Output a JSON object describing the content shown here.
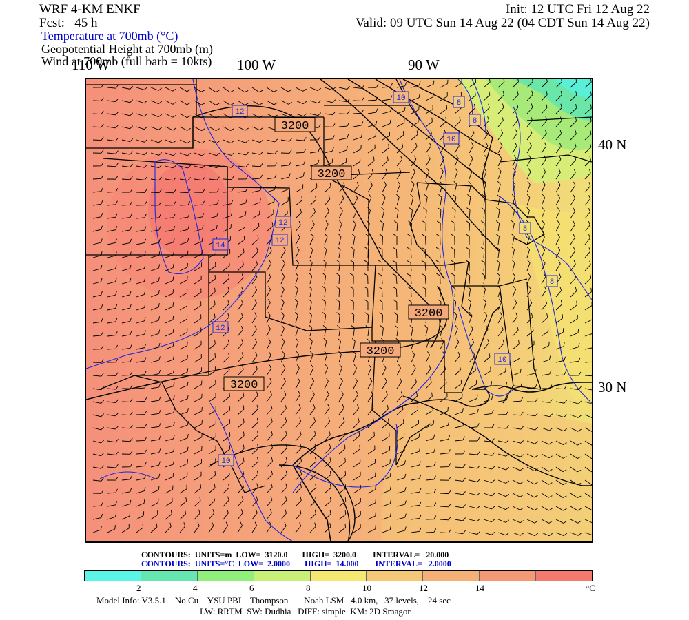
{
  "header": {
    "model": "WRF 4-KM ENKF",
    "init": "Init: 12 UTC Fri 12 Aug 22",
    "fcst": "Fcst:   45 h",
    "valid": "Valid: 09 UTC Sun 14 Aug 22 (04 CDT Sun 14 Aug 22)",
    "field1": "Temperature at 700mb (°C)",
    "field2": "Geopotential Height at 700mb (m)",
    "field3": "Wind at 700mb (full barb = 10kts)"
  },
  "axes": {
    "lon_labels": [
      "110 W",
      "100 W",
      "90 W"
    ],
    "lat_labels": [
      "40 N",
      "30 N"
    ]
  },
  "map": {
    "height_contour_labels": [
      "3200",
      "3200",
      "3200",
      "3200",
      "3200"
    ],
    "temp_contour_labels": [
      "12",
      "10",
      "8",
      "8",
      "10",
      "12",
      "12",
      "14",
      "8",
      "8",
      "12",
      "10",
      "10"
    ],
    "colors": {
      "contour_height": "#000000",
      "contour_temp": "#0000ff",
      "border": "#000000"
    }
  },
  "contour_info": {
    "height": {
      "label": "CONTOURS:",
      "units": "UNITS=m",
      "low": "LOW=  3120.0",
      "high": "HIGH=  3200.0",
      "interval": "INTERVAL=   20.000"
    },
    "temp": {
      "label": "CONTOURS:",
      "units": "UNITS=°C",
      "low": "LOW=  2.0000",
      "high": "HIGH=  14.000",
      "interval": "INTERVAL=   2.0000"
    }
  },
  "colorbar": {
    "colors": [
      "#5af5e6",
      "#66e6b0",
      "#8ef07a",
      "#c8f078",
      "#f5e870",
      "#f5c878",
      "#f5b078",
      "#f59878",
      "#f57a6e"
    ],
    "tick_labels": [
      "2",
      "4",
      "6",
      "8",
      "10",
      "12",
      "14"
    ],
    "unit": "°C"
  },
  "footer": {
    "line1": "Model Info: V3.5.1    No Cu    YSU PBL   Thompson       Noah LSM   4.0 km,   37 levels,    24 sec",
    "line2": "LW: RRTM  SW: Dudhia   DIFF: simple  KM: 2D Smagor"
  }
}
